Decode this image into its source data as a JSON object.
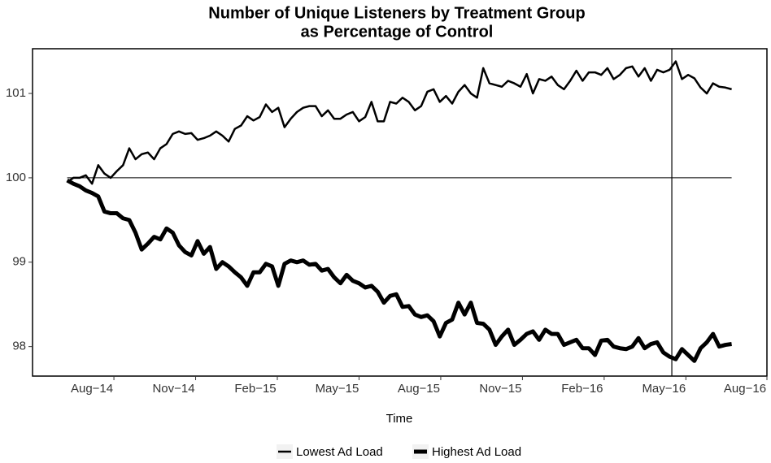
{
  "chart_data": {
    "type": "line",
    "title": [
      "Number of Unique Listeners by Treatment Group",
      "as Percentage of Control"
    ],
    "x_label": "Time",
    "x": [
      2014.44,
      2014.459,
      2014.478,
      2014.497,
      2014.516,
      2014.535,
      2014.554,
      2014.573,
      2014.592,
      2014.611,
      2014.63,
      2014.649,
      2014.668,
      2014.687,
      2014.706,
      2014.725,
      2014.744,
      2014.763,
      2014.782,
      2014.801,
      2014.82,
      2014.839,
      2014.858,
      2014.877,
      2014.896,
      2014.915,
      2014.934,
      2014.953,
      2014.972,
      2014.991,
      2015.01,
      2015.029,
      2015.048,
      2015.067,
      2015.086,
      2015.105,
      2015.124,
      2015.143,
      2015.162,
      2015.181,
      2015.2,
      2015.219,
      2015.238,
      2015.257,
      2015.276,
      2015.295,
      2015.314,
      2015.333,
      2015.352,
      2015.371,
      2015.39,
      2015.409,
      2015.428,
      2015.447,
      2015.466,
      2015.485,
      2015.504,
      2015.523,
      2015.542,
      2015.561,
      2015.58,
      2015.599,
      2015.618,
      2015.637,
      2015.656,
      2015.675,
      2015.694,
      2015.713,
      2015.732,
      2015.751,
      2015.77,
      2015.789,
      2015.808,
      2015.827,
      2015.846,
      2015.865,
      2015.884,
      2015.903,
      2015.922,
      2015.941,
      2015.96,
      2015.979,
      2015.998,
      2016.017,
      2016.036,
      2016.055,
      2016.074,
      2016.093,
      2016.112,
      2016.131,
      2016.15,
      2016.169,
      2016.188,
      2016.207,
      2016.226,
      2016.245,
      2016.264,
      2016.283,
      2016.302,
      2016.321,
      2016.34,
      2016.359,
      2016.378,
      2016.397,
      2016.416,
      2016.435,
      2016.454,
      2016.473
    ],
    "series": [
      {
        "name": "Lowest Ad Load",
        "color": "#000000",
        "line_width": 2.5,
        "values": [
          99.95,
          100.0,
          100.0,
          100.03,
          99.93,
          100.15,
          100.05,
          100.0,
          100.08,
          100.15,
          100.35,
          100.22,
          100.28,
          100.3,
          100.22,
          100.35,
          100.4,
          100.52,
          100.55,
          100.52,
          100.53,
          100.45,
          100.47,
          100.5,
          100.55,
          100.5,
          100.43,
          100.58,
          100.62,
          100.73,
          100.68,
          100.72,
          100.87,
          100.78,
          100.83,
          100.6,
          100.7,
          100.78,
          100.83,
          100.85,
          100.85,
          100.73,
          100.8,
          100.7,
          100.7,
          100.75,
          100.78,
          100.67,
          100.72,
          100.9,
          100.67,
          100.67,
          100.9,
          100.88,
          100.95,
          100.9,
          100.8,
          100.85,
          101.02,
          101.05,
          100.9,
          100.97,
          100.88,
          101.02,
          101.1,
          101.0,
          100.95,
          101.3,
          101.12,
          101.1,
          101.08,
          101.15,
          101.12,
          101.08,
          101.23,
          101.0,
          101.17,
          101.15,
          101.2,
          101.1,
          101.05,
          101.15,
          101.27,
          101.15,
          101.25,
          101.25,
          101.22,
          101.3,
          101.17,
          101.22,
          101.3,
          101.32,
          101.2,
          101.3,
          101.15,
          101.28,
          101.25,
          101.28,
          101.38,
          101.17,
          101.22,
          101.18,
          101.07,
          101.0,
          101.12,
          101.08,
          101.07,
          101.05
        ]
      },
      {
        "name": "Highest Ad Load",
        "color": "#000000",
        "line_width": 5,
        "values": [
          99.97,
          99.93,
          99.9,
          99.85,
          99.82,
          99.78,
          99.6,
          99.58,
          99.58,
          99.52,
          99.5,
          99.35,
          99.15,
          99.22,
          99.3,
          99.27,
          99.4,
          99.35,
          99.2,
          99.12,
          99.08,
          99.25,
          99.1,
          99.18,
          98.92,
          99.0,
          98.95,
          98.88,
          98.82,
          98.72,
          98.88,
          98.88,
          98.98,
          98.95,
          98.72,
          98.98,
          99.02,
          99.0,
          99.02,
          98.97,
          98.98,
          98.9,
          98.92,
          98.82,
          98.75,
          98.85,
          98.78,
          98.75,
          98.7,
          98.72,
          98.65,
          98.52,
          98.6,
          98.62,
          98.47,
          98.48,
          98.38,
          98.35,
          98.37,
          98.3,
          98.12,
          98.28,
          98.32,
          98.52,
          98.38,
          98.52,
          98.28,
          98.27,
          98.2,
          98.02,
          98.12,
          98.2,
          98.02,
          98.08,
          98.15,
          98.18,
          98.08,
          98.2,
          98.15,
          98.15,
          98.02,
          98.05,
          98.08,
          97.98,
          97.98,
          97.9,
          98.07,
          98.08,
          98.0,
          97.98,
          97.97,
          98.0,
          98.1,
          97.98,
          98.03,
          98.05,
          97.93,
          97.88,
          97.85,
          97.97,
          97.9,
          97.83,
          97.98,
          98.05,
          98.15,
          98.0,
          98.02,
          98.03
        ]
      }
    ],
    "xlim": [
      2014.334,
      2016.581
    ],
    "xticks": [
      {
        "value": 2014.583,
        "label": "Aug−14"
      },
      {
        "value": 2014.833,
        "label": "Nov−14"
      },
      {
        "value": 2015.083,
        "label": "Feb−15"
      },
      {
        "value": 2015.333,
        "label": "May−15"
      },
      {
        "value": 2015.583,
        "label": "Aug−15"
      },
      {
        "value": 2015.833,
        "label": "Nov−15"
      },
      {
        "value": 2016.083,
        "label": "Feb−16"
      },
      {
        "value": 2016.333,
        "label": "May−16"
      },
      {
        "value": 2016.581,
        "label": "Aug−16"
      }
    ],
    "ylim": [
      97.65,
      101.53
    ],
    "yticks": [
      98,
      99,
      100,
      101
    ],
    "hline": 100,
    "vline": 2016.29,
    "grid": false,
    "legend": "bottom"
  }
}
